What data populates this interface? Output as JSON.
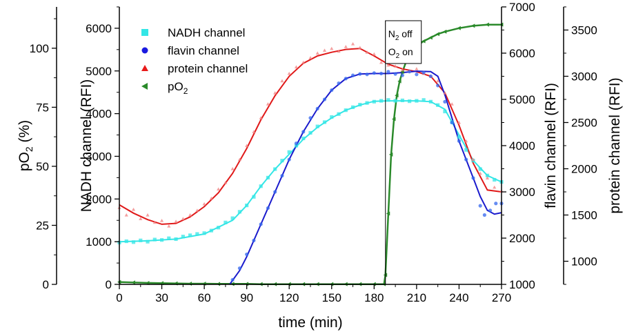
{
  "chart_data": {
    "type": "scatter",
    "x_axis": {
      "label": "time (min)",
      "range": [
        0,
        270
      ],
      "ticks": [
        0,
        30,
        60,
        90,
        120,
        150,
        180,
        210,
        240,
        270
      ],
      "tick_labels": [
        "0",
        "30",
        "60",
        "90",
        "120",
        "150",
        "180",
        "210",
        "240",
        "270"
      ]
    },
    "y_axes": [
      {
        "id": "po2",
        "label": "pO2 (%)",
        "label_main": "pO",
        "label_sub": "2",
        "label_rest": " (%)",
        "range": [
          0,
          117.5
        ],
        "ticks": [
          0,
          25,
          50,
          75,
          100
        ],
        "tick_labels": [
          "0",
          "25",
          "50",
          "75",
          "100"
        ]
      },
      {
        "id": "nadh",
        "label": "NADH channel (RFI)",
        "range": [
          0,
          6500
        ],
        "ticks": [
          0,
          1000,
          2000,
          3000,
          4000,
          5000,
          6000
        ],
        "tick_labels": [
          "0",
          "1000",
          "2000",
          "3000",
          "4000",
          "5000",
          "6000"
        ]
      },
      {
        "id": "flavin",
        "label": "flavin channel (RFI)",
        "range": [
          1000,
          7000
        ],
        "ticks": [
          1000,
          2000,
          3000,
          4000,
          5000,
          6000,
          7000
        ],
        "tick_labels": [
          "1000",
          "2000",
          "3000",
          "4000",
          "5000",
          "6000",
          "7000"
        ]
      },
      {
        "id": "protein",
        "label": "protein channel (RFI)",
        "range": [
          750,
          3750
        ],
        "ticks": [
          1000,
          1500,
          2000,
          2500,
          3000,
          3500
        ],
        "tick_labels": [
          "1000",
          "1500",
          "2000",
          "2500",
          "3000",
          "3500"
        ]
      }
    ],
    "legend": {
      "placement": "top-left",
      "entries": [
        {
          "series": "nadh",
          "text": "NADH channel"
        },
        {
          "series": "flavin",
          "text": "flavin channel"
        },
        {
          "series": "protein",
          "text": "protein channel"
        },
        {
          "series": "po2",
          "text": "pO",
          "sub": "2"
        }
      ]
    },
    "annotation": {
      "x": 188,
      "line1_main": "N",
      "line1_sub": "2",
      "line1_rest": " off",
      "line2_main": "O",
      "line2_sub": "2",
      "line2_rest": " on"
    },
    "series": [
      {
        "id": "nadh",
        "axis": "nadh",
        "marker": "square",
        "color": "#33e6e6",
        "fit_color": "#33e6e6",
        "fit": [
          [
            0,
            1000
          ],
          [
            20,
            1020
          ],
          [
            40,
            1060
          ],
          [
            60,
            1180
          ],
          [
            80,
            1500
          ],
          [
            90,
            1850
          ],
          [
            100,
            2300
          ],
          [
            110,
            2700
          ],
          [
            120,
            3050
          ],
          [
            130,
            3400
          ],
          [
            140,
            3680
          ],
          [
            150,
            3900
          ],
          [
            160,
            4080
          ],
          [
            170,
            4200
          ],
          [
            180,
            4290
          ],
          [
            190,
            4300
          ],
          [
            200,
            4300
          ],
          [
            210,
            4300
          ],
          [
            220,
            4280
          ],
          [
            230,
            4100
          ],
          [
            240,
            3500
          ],
          [
            250,
            2900
          ],
          [
            260,
            2550
          ],
          [
            270,
            2400
          ]
        ],
        "points": [
          [
            0,
            980
          ],
          [
            5,
            1010
          ],
          [
            10,
            990
          ],
          [
            15,
            1030
          ],
          [
            20,
            1000
          ],
          [
            25,
            1050
          ],
          [
            30,
            1040
          ],
          [
            35,
            1080
          ],
          [
            40,
            1060
          ],
          [
            45,
            1120
          ],
          [
            50,
            1150
          ],
          [
            55,
            1180
          ],
          [
            60,
            1200
          ],
          [
            65,
            1260
          ],
          [
            70,
            1330
          ],
          [
            75,
            1450
          ],
          [
            80,
            1550
          ],
          [
            85,
            1700
          ],
          [
            90,
            1850
          ],
          [
            95,
            2050
          ],
          [
            100,
            2300
          ],
          [
            105,
            2500
          ],
          [
            110,
            2700
          ],
          [
            115,
            2900
          ],
          [
            120,
            3100
          ],
          [
            125,
            3250
          ],
          [
            130,
            3420
          ],
          [
            135,
            3550
          ],
          [
            140,
            3700
          ],
          [
            145,
            3800
          ],
          [
            150,
            3920
          ],
          [
            155,
            3990
          ],
          [
            160,
            4080
          ],
          [
            165,
            4150
          ],
          [
            170,
            4210
          ],
          [
            175,
            4250
          ],
          [
            180,
            4280
          ],
          [
            185,
            4300
          ],
          [
            190,
            4320
          ],
          [
            195,
            4300
          ],
          [
            200,
            4310
          ],
          [
            205,
            4290
          ],
          [
            210,
            4300
          ],
          [
            215,
            4320
          ],
          [
            220,
            4280
          ],
          [
            225,
            4200
          ],
          [
            230,
            4050
          ],
          [
            235,
            3800
          ],
          [
            240,
            3450
          ],
          [
            245,
            3150
          ],
          [
            250,
            2900
          ],
          [
            255,
            2700
          ],
          [
            260,
            2550
          ],
          [
            265,
            2450
          ],
          [
            270,
            2400
          ]
        ]
      },
      {
        "id": "flavin",
        "axis": "flavin",
        "marker": "circle",
        "color": "#3366ee",
        "fit_color": "#1a1acc",
        "fit": [
          [
            78,
            1000
          ],
          [
            85,
            1300
          ],
          [
            90,
            1600
          ],
          [
            100,
            2300
          ],
          [
            110,
            3000
          ],
          [
            120,
            3700
          ],
          [
            130,
            4300
          ],
          [
            140,
            4800
          ],
          [
            150,
            5200
          ],
          [
            160,
            5450
          ],
          [
            170,
            5550
          ],
          [
            180,
            5560
          ],
          [
            190,
            5560
          ],
          [
            200,
            5580
          ],
          [
            210,
            5610
          ],
          [
            220,
            5600
          ],
          [
            225,
            5500
          ],
          [
            230,
            5100
          ],
          [
            240,
            4100
          ],
          [
            250,
            3300
          ],
          [
            255,
            2900
          ],
          [
            260,
            2600
          ],
          [
            265,
            2520
          ],
          [
            270,
            2550
          ]
        ],
        "points": [
          [
            80,
            1100
          ],
          [
            85,
            1350
          ],
          [
            90,
            1650
          ],
          [
            95,
            1950
          ],
          [
            100,
            2300
          ],
          [
            105,
            2650
          ],
          [
            110,
            3000
          ],
          [
            115,
            3350
          ],
          [
            120,
            3700
          ],
          [
            125,
            4050
          ],
          [
            130,
            4300
          ],
          [
            135,
            4600
          ],
          [
            140,
            4800
          ],
          [
            145,
            5000
          ],
          [
            150,
            5200
          ],
          [
            155,
            5350
          ],
          [
            160,
            5450
          ],
          [
            165,
            5520
          ],
          [
            170,
            5550
          ],
          [
            175,
            5540
          ],
          [
            180,
            5570
          ],
          [
            185,
            5560
          ],
          [
            190,
            5600
          ],
          [
            195,
            5550
          ],
          [
            200,
            5520
          ],
          [
            205,
            5600
          ],
          [
            210,
            5540
          ],
          [
            215,
            5580
          ],
          [
            220,
            5500
          ],
          [
            225,
            5300
          ],
          [
            230,
            4950
          ],
          [
            235,
            4500
          ],
          [
            240,
            4100
          ],
          [
            245,
            3700
          ],
          [
            250,
            3300
          ],
          [
            255,
            2700
          ],
          [
            258,
            2500
          ],
          [
            262,
            2600
          ],
          [
            266,
            2750
          ],
          [
            270,
            2750
          ]
        ]
      },
      {
        "id": "protein",
        "axis": "protein",
        "marker": "triangle",
        "color": "#f08080",
        "fit_color": "#e01919",
        "fit": [
          [
            0,
            1610
          ],
          [
            10,
            1520
          ],
          [
            20,
            1450
          ],
          [
            30,
            1400
          ],
          [
            40,
            1410
          ],
          [
            50,
            1480
          ],
          [
            60,
            1590
          ],
          [
            70,
            1740
          ],
          [
            80,
            1950
          ],
          [
            90,
            2220
          ],
          [
            100,
            2530
          ],
          [
            110,
            2790
          ],
          [
            120,
            3000
          ],
          [
            130,
            3140
          ],
          [
            140,
            3220
          ],
          [
            150,
            3260
          ],
          [
            160,
            3290
          ],
          [
            170,
            3300
          ],
          [
            180,
            3220
          ],
          [
            190,
            3130
          ],
          [
            200,
            3080
          ],
          [
            210,
            3050
          ],
          [
            220,
            3000
          ],
          [
            230,
            2820
          ],
          [
            240,
            2470
          ],
          [
            250,
            2060
          ],
          [
            260,
            1770
          ],
          [
            270,
            1750
          ]
        ],
        "points": [
          [
            0,
            1580
          ],
          [
            5,
            1500
          ],
          [
            10,
            1560
          ],
          [
            15,
            1460
          ],
          [
            20,
            1500
          ],
          [
            25,
            1420
          ],
          [
            30,
            1440
          ],
          [
            35,
            1380
          ],
          [
            40,
            1430
          ],
          [
            45,
            1460
          ],
          [
            50,
            1500
          ],
          [
            55,
            1550
          ],
          [
            60,
            1620
          ],
          [
            65,
            1680
          ],
          [
            70,
            1780
          ],
          [
            75,
            1850
          ],
          [
            80,
            2000
          ],
          [
            85,
            2100
          ],
          [
            90,
            2250
          ],
          [
            95,
            2400
          ],
          [
            100,
            2550
          ],
          [
            105,
            2700
          ],
          [
            110,
            2820
          ],
          [
            115,
            2950
          ],
          [
            120,
            3030
          ],
          [
            125,
            3100
          ],
          [
            130,
            3150
          ],
          [
            135,
            3200
          ],
          [
            140,
            3250
          ],
          [
            145,
            3280
          ],
          [
            150,
            3300
          ],
          [
            155,
            3270
          ],
          [
            160,
            3320
          ],
          [
            165,
            3350
          ],
          [
            170,
            3310
          ],
          [
            175,
            3260
          ],
          [
            180,
            3240
          ],
          [
            185,
            3150
          ],
          [
            190,
            3120
          ],
          [
            195,
            3110
          ],
          [
            200,
            3070
          ],
          [
            205,
            3060
          ],
          [
            210,
            3080
          ],
          [
            215,
            3030
          ],
          [
            220,
            3000
          ],
          [
            225,
            2950
          ],
          [
            230,
            2820
          ],
          [
            235,
            2700
          ],
          [
            240,
            2500
          ],
          [
            245,
            2300
          ],
          [
            250,
            2100
          ],
          [
            255,
            1950
          ],
          [
            260,
            1900
          ],
          [
            265,
            1800
          ],
          [
            270,
            1760
          ]
        ]
      },
      {
        "id": "po2",
        "axis": "po2",
        "marker": "triangle-left",
        "color": "#2a8a2a",
        "fit_color": "#2a8a2a",
        "fit": [],
        "points": [
          [
            0,
            1
          ],
          [
            10,
            0.8
          ],
          [
            20,
            0.6
          ],
          [
            30,
            0.5
          ],
          [
            40,
            0.4
          ],
          [
            50,
            0.3
          ],
          [
            60,
            0.3
          ],
          [
            70,
            0.2
          ],
          [
            80,
            0.2
          ],
          [
            90,
            0.2
          ],
          [
            100,
            0.1
          ],
          [
            110,
            0.1
          ],
          [
            120,
            0.1
          ],
          [
            130,
            0.1
          ],
          [
            140,
            0.1
          ],
          [
            150,
            0.1
          ],
          [
            160,
            0.1
          ],
          [
            170,
            0.1
          ],
          [
            180,
            0.1
          ],
          [
            187,
            0.1
          ],
          [
            188,
            4
          ],
          [
            190,
            30
          ],
          [
            192,
            55
          ],
          [
            194,
            70
          ],
          [
            196,
            80
          ],
          [
            198,
            86
          ],
          [
            200,
            90
          ],
          [
            203,
            95
          ],
          [
            206,
            98
          ],
          [
            210,
            101
          ],
          [
            215,
            103
          ],
          [
            220,
            104.5
          ],
          [
            225,
            106
          ],
          [
            230,
            107
          ],
          [
            240,
            108.5
          ],
          [
            250,
            109.5
          ],
          [
            260,
            110
          ],
          [
            270,
            110
          ]
        ]
      }
    ]
  }
}
